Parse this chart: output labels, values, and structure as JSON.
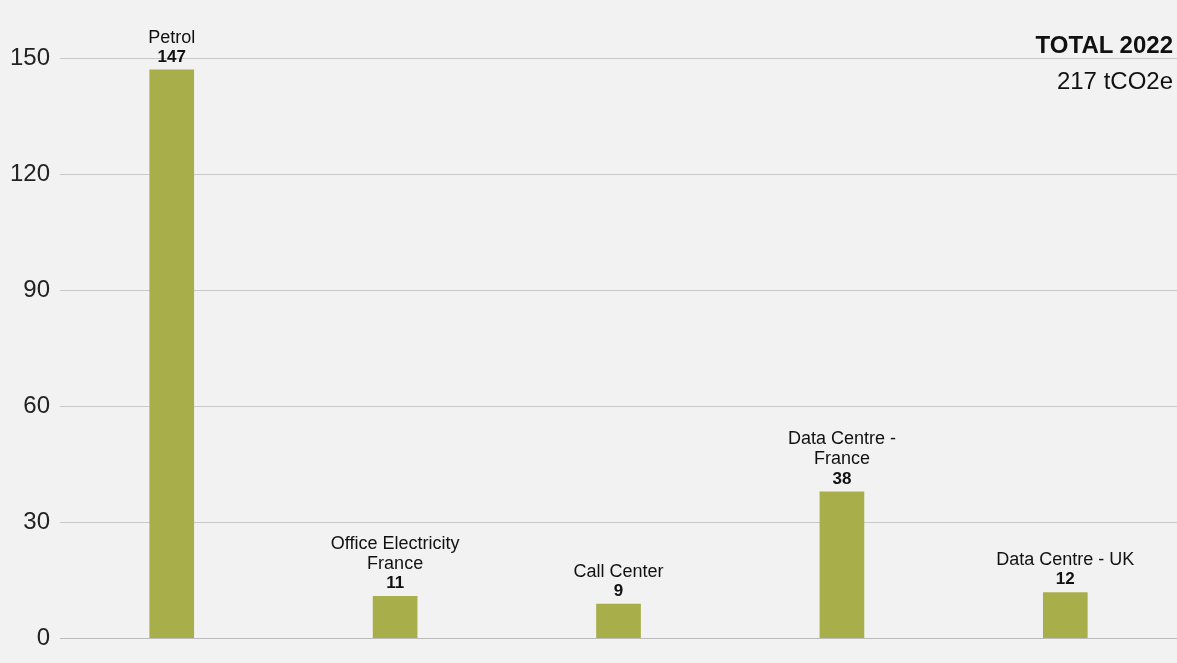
{
  "chart_data": {
    "type": "bar",
    "categories": [
      "Petrol",
      "Office Electricity France",
      "Call Center",
      "Data Centre - France",
      "Data Centre - UK"
    ],
    "values": [
      147,
      11,
      9,
      38,
      12
    ],
    "color": "#a8ae4a",
    "ylim": [
      0,
      150
    ],
    "yticks": [
      0,
      30,
      60,
      90,
      120,
      150
    ],
    "grid": "y",
    "tick_labels": "y",
    "data_labels": true,
    "legend": false,
    "annotations": [
      "TOTAL 2022",
      "217 tCO2e"
    ]
  }
}
